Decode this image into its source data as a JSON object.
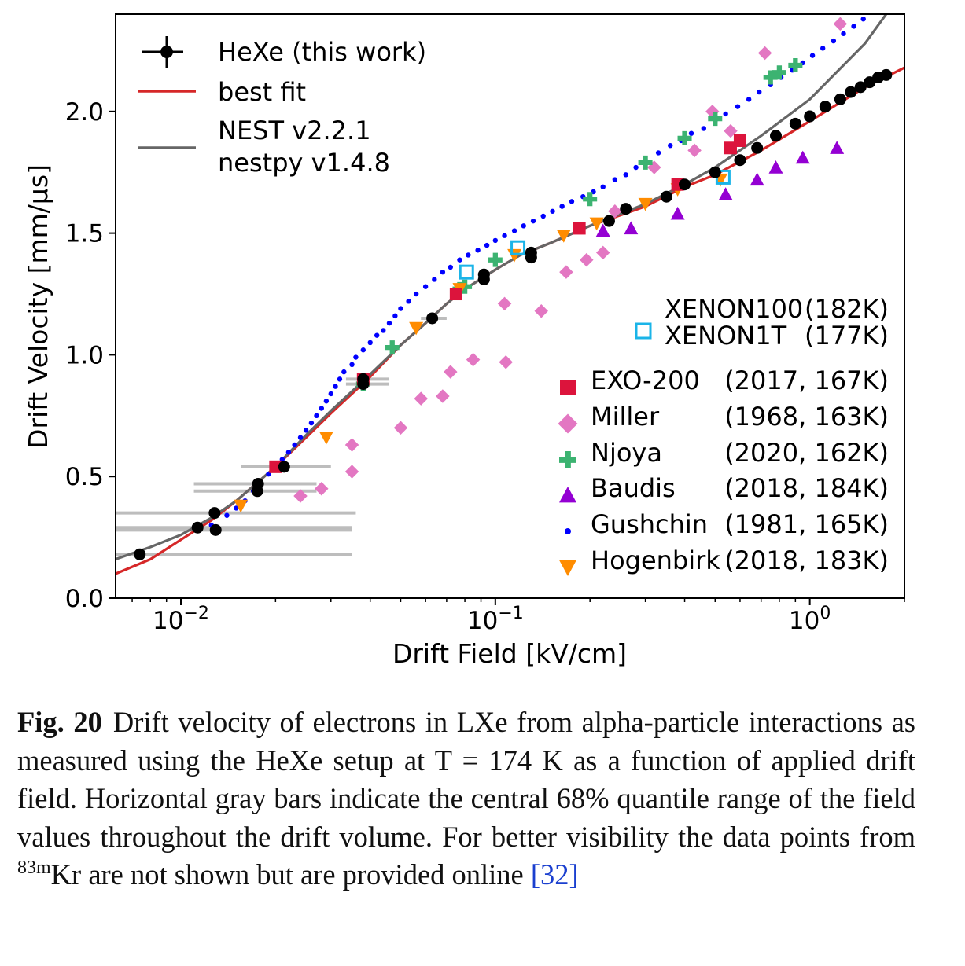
{
  "chart_data": {
    "type": "scatter",
    "xlabel": "Drift Field [kV/cm]",
    "ylabel": "Drift Velocity [mm/µs]",
    "xscale": "log",
    "xlim": [
      0.0062,
      2.0
    ],
    "ylim": [
      0.0,
      2.4
    ],
    "x_ticks": [
      0.01,
      0.1,
      1.0
    ],
    "x_tick_labels": [
      {
        "base": "10",
        "exp": "−2"
      },
      {
        "base": "10",
        "exp": "−1"
      },
      {
        "base": "10",
        "exp": "0"
      }
    ],
    "y_ticks": [
      0.0,
      0.5,
      1.0,
      1.5,
      2.0
    ],
    "y_tick_labels": [
      "0.0",
      "0.5",
      "1.0",
      "1.5",
      "2.0"
    ],
    "grid": false,
    "legend_top": {
      "placement": "top-left",
      "entries": [
        {
          "label": "HeXe (this work)",
          "marker": "errorbar-circle",
          "color": "#000000"
        },
        {
          "label": "best fit",
          "marker": "line",
          "color": "#d62728"
        },
        {
          "label": "NEST v2.2.1\nnestpy v1.4.8",
          "line1": "NEST v2.2.1",
          "line2": "nestpy v1.4.8",
          "marker": "line",
          "color": "#666666"
        }
      ]
    },
    "legend_bottom": {
      "placement": "right",
      "entries": [
        {
          "name": "XENON100",
          "info": "(182K)",
          "marker": "open-square",
          "color": "#1ab4e8"
        },
        {
          "name": "XENON1T",
          "info": "(177K)",
          "marker": "none",
          "color": "#1ab4e8"
        },
        {
          "name": "EXO-200",
          "info": "(2017, 167K)",
          "marker": "square",
          "color": "#dc143c"
        },
        {
          "name": "Miller",
          "info": "(1968, 163K)",
          "marker": "diamond",
          "color": "#e377c2"
        },
        {
          "name": "Njoya",
          "info": "(2020, 162K)",
          "marker": "plus",
          "color": "#3cb371"
        },
        {
          "name": "Baudis",
          "info": "(2018, 184K)",
          "marker": "triangle-up",
          "color": "#9400d3"
        },
        {
          "name": "Gushchin",
          "info": "(1981, 165K)",
          "marker": "dot",
          "color": "#0000ff"
        },
        {
          "name": "Hogenbirk",
          "info": "(2018, 183K)",
          "marker": "triangle-down",
          "color": "#ff8c00"
        }
      ]
    },
    "series": [
      {
        "name": "HeXe (this work)",
        "key": "hexe",
        "color": "#000000",
        "points": [
          [
            0.0074,
            0.18
          ],
          [
            0.0113,
            0.29
          ],
          [
            0.0128,
            0.35
          ],
          [
            0.0129,
            0.28
          ],
          [
            0.0175,
            0.44
          ],
          [
            0.0176,
            0.47
          ],
          [
            0.0213,
            0.54
          ],
          [
            0.038,
            0.88
          ],
          [
            0.038,
            0.9
          ],
          [
            0.063,
            1.15
          ],
          [
            0.092,
            1.31
          ],
          [
            0.092,
            1.33
          ],
          [
            0.13,
            1.4
          ],
          [
            0.13,
            1.42
          ],
          [
            0.23,
            1.55
          ],
          [
            0.26,
            1.6
          ],
          [
            0.35,
            1.65
          ],
          [
            0.4,
            1.7
          ],
          [
            0.5,
            1.75
          ],
          [
            0.6,
            1.8
          ],
          [
            0.68,
            1.85
          ],
          [
            0.78,
            1.9
          ],
          [
            0.9,
            1.95
          ],
          [
            1.0,
            1.98
          ],
          [
            1.12,
            2.02
          ],
          [
            1.25,
            2.05
          ],
          [
            1.35,
            2.08
          ],
          [
            1.45,
            2.1
          ],
          [
            1.55,
            2.12
          ],
          [
            1.65,
            2.14
          ],
          [
            1.75,
            2.15
          ]
        ],
        "xerr_range": [
          [
            0.0062,
            0.035
          ],
          [
            0.0062,
            0.035
          ],
          [
            0.0062,
            0.036
          ],
          [
            0.0062,
            0.035
          ],
          [
            0.011,
            0.027
          ],
          [
            0.011,
            0.027
          ],
          [
            0.0155,
            0.03
          ],
          [
            0.0335,
            0.046
          ],
          [
            0.0335,
            0.046
          ],
          [
            0.058,
            0.07
          ],
          [
            0.088,
            0.096
          ],
          [
            0.088,
            0.096
          ],
          [
            0.125,
            0.135
          ],
          [
            0.125,
            0.135
          ]
        ]
      },
      {
        "name": "best fit",
        "key": "fit",
        "color": "#d62728",
        "points": [
          [
            0.0062,
            0.1
          ],
          [
            0.008,
            0.16
          ],
          [
            0.01,
            0.24
          ],
          [
            0.0125,
            0.32
          ],
          [
            0.015,
            0.4
          ],
          [
            0.02,
            0.54
          ],
          [
            0.025,
            0.66
          ],
          [
            0.03,
            0.76
          ],
          [
            0.035,
            0.84
          ],
          [
            0.04,
            0.91
          ],
          [
            0.05,
            1.04
          ],
          [
            0.06,
            1.13
          ],
          [
            0.07,
            1.21
          ],
          [
            0.08,
            1.27
          ],
          [
            0.1,
            1.35
          ],
          [
            0.12,
            1.41
          ],
          [
            0.15,
            1.46
          ],
          [
            0.2,
            1.53
          ],
          [
            0.3,
            1.61
          ],
          [
            0.4,
            1.69
          ],
          [
            0.5,
            1.74
          ],
          [
            0.7,
            1.84
          ],
          [
            1.0,
            1.96
          ],
          [
            1.5,
            2.1
          ],
          [
            2.0,
            2.18
          ]
        ]
      },
      {
        "name": "NEST v2.2.1 nestpy v1.4.8",
        "key": "nest",
        "color": "#666666",
        "points": [
          [
            0.0062,
            0.16
          ],
          [
            0.008,
            0.21
          ],
          [
            0.01,
            0.26
          ],
          [
            0.0125,
            0.33
          ],
          [
            0.015,
            0.4
          ],
          [
            0.02,
            0.54
          ],
          [
            0.025,
            0.67
          ],
          [
            0.03,
            0.77
          ],
          [
            0.035,
            0.85
          ],
          [
            0.04,
            0.92
          ],
          [
            0.05,
            1.04
          ],
          [
            0.06,
            1.13
          ],
          [
            0.07,
            1.21
          ],
          [
            0.08,
            1.27
          ],
          [
            0.1,
            1.35
          ],
          [
            0.12,
            1.41
          ],
          [
            0.15,
            1.46
          ],
          [
            0.2,
            1.53
          ],
          [
            0.3,
            1.62
          ],
          [
            0.4,
            1.7
          ],
          [
            0.5,
            1.77
          ],
          [
            0.7,
            1.9
          ],
          [
            1.0,
            2.05
          ],
          [
            1.5,
            2.28
          ],
          [
            1.75,
            2.4
          ]
        ]
      },
      {
        "name": "XENON100 (182K)",
        "key": "xenon",
        "color": "#1ab4e8",
        "points": [
          [
            0.081,
            1.34
          ],
          [
            0.118,
            1.44
          ],
          [
            0.53,
            1.73
          ]
        ]
      },
      {
        "name": "EXO-200 (2017, 167K)",
        "key": "exo",
        "color": "#dc143c",
        "points": [
          [
            0.02,
            0.54
          ],
          [
            0.038,
            0.9
          ],
          [
            0.075,
            1.25
          ],
          [
            0.185,
            1.52
          ],
          [
            0.38,
            1.7
          ],
          [
            0.56,
            1.85
          ],
          [
            0.6,
            1.88
          ]
        ]
      },
      {
        "name": "Miller (1968, 163K)",
        "key": "miller",
        "color": "#e377c2",
        "points": [
          [
            0.024,
            0.42
          ],
          [
            0.028,
            0.45
          ],
          [
            0.035,
            0.52
          ],
          [
            0.035,
            0.63
          ],
          [
            0.05,
            0.7
          ],
          [
            0.058,
            0.82
          ],
          [
            0.068,
            0.83
          ],
          [
            0.072,
            0.93
          ],
          [
            0.085,
            0.98
          ],
          [
            0.108,
            0.97
          ],
          [
            0.107,
            1.21
          ],
          [
            0.14,
            1.18
          ],
          [
            0.168,
            1.34
          ],
          [
            0.195,
            1.39
          ],
          [
            0.22,
            1.42
          ],
          [
            0.24,
            1.59
          ],
          [
            0.32,
            1.77
          ],
          [
            0.43,
            1.84
          ],
          [
            0.49,
            2.0
          ],
          [
            0.56,
            1.92
          ],
          [
            0.72,
            2.24
          ],
          [
            1.25,
            2.36
          ]
        ]
      },
      {
        "name": "Njoya (2020, 162K)",
        "key": "njoya",
        "color": "#3cb371",
        "points": [
          [
            0.038,
            0.88
          ],
          [
            0.047,
            1.03
          ],
          [
            0.077,
            1.27
          ],
          [
            0.08,
            1.28
          ],
          [
            0.1,
            1.39
          ],
          [
            0.2,
            1.64
          ],
          [
            0.3,
            1.79
          ],
          [
            0.4,
            1.89
          ],
          [
            0.5,
            1.97
          ],
          [
            0.75,
            2.14
          ],
          [
            0.8,
            2.16
          ],
          [
            0.9,
            2.19
          ]
        ]
      },
      {
        "name": "Baudis (2018, 184K)",
        "key": "baudis",
        "color": "#9400d3",
        "points": [
          [
            0.22,
            1.51
          ],
          [
            0.27,
            1.52
          ],
          [
            0.38,
            1.58
          ],
          [
            0.54,
            1.66
          ],
          [
            0.68,
            1.72
          ],
          [
            0.78,
            1.77
          ],
          [
            0.95,
            1.81
          ],
          [
            1.22,
            1.85
          ]
        ]
      },
      {
        "name": "Gushchin (1981, 165K)",
        "key": "gushchin",
        "color": "#0000ff",
        "points": [
          [
            0.0125,
            0.3
          ],
          [
            0.014,
            0.34
          ],
          [
            0.015,
            0.37
          ],
          [
            0.016,
            0.4
          ],
          [
            0.017,
            0.44
          ],
          [
            0.018,
            0.47
          ],
          [
            0.019,
            0.51
          ],
          [
            0.02,
            0.54
          ],
          [
            0.021,
            0.57
          ],
          [
            0.022,
            0.6
          ],
          [
            0.023,
            0.63
          ],
          [
            0.024,
            0.66
          ],
          [
            0.025,
            0.69
          ],
          [
            0.026,
            0.72
          ],
          [
            0.027,
            0.75
          ],
          [
            0.028,
            0.78
          ],
          [
            0.029,
            0.81
          ],
          [
            0.03,
            0.84
          ],
          [
            0.031,
            0.87
          ],
          [
            0.032,
            0.9
          ],
          [
            0.033,
            0.93
          ],
          [
            0.035,
            0.96
          ],
          [
            0.036,
            0.99
          ],
          [
            0.038,
            1.02
          ],
          [
            0.04,
            1.05
          ],
          [
            0.042,
            1.08
          ],
          [
            0.044,
            1.1
          ],
          [
            0.046,
            1.13
          ],
          [
            0.048,
            1.16
          ],
          [
            0.05,
            1.19
          ],
          [
            0.053,
            1.22
          ],
          [
            0.056,
            1.25
          ],
          [
            0.06,
            1.28
          ],
          [
            0.064,
            1.31
          ],
          [
            0.068,
            1.34
          ],
          [
            0.072,
            1.36
          ],
          [
            0.077,
            1.39
          ],
          [
            0.082,
            1.41
          ],
          [
            0.088,
            1.43
          ],
          [
            0.094,
            1.45
          ],
          [
            0.1,
            1.47
          ],
          [
            0.107,
            1.49
          ],
          [
            0.115,
            1.51
          ],
          [
            0.123,
            1.53
          ],
          [
            0.132,
            1.55
          ],
          [
            0.142,
            1.57
          ],
          [
            0.152,
            1.59
          ],
          [
            0.163,
            1.61
          ],
          [
            0.175,
            1.63
          ],
          [
            0.19,
            1.65
          ],
          [
            0.205,
            1.67
          ],
          [
            0.22,
            1.69
          ],
          [
            0.24,
            1.72
          ],
          [
            0.26,
            1.74
          ],
          [
            0.28,
            1.77
          ],
          [
            0.3,
            1.8
          ],
          [
            0.33,
            1.83
          ],
          [
            0.36,
            1.86
          ],
          [
            0.39,
            1.88
          ],
          [
            0.42,
            1.91
          ],
          [
            0.46,
            1.93
          ],
          [
            0.5,
            1.96
          ],
          [
            0.54,
            1.99
          ],
          [
            0.59,
            2.02
          ],
          [
            0.64,
            2.05
          ],
          [
            0.69,
            2.08
          ],
          [
            0.75,
            2.11
          ],
          [
            0.81,
            2.14
          ],
          [
            0.88,
            2.17
          ],
          [
            0.95,
            2.2
          ],
          [
            1.02,
            2.23
          ],
          [
            1.1,
            2.26
          ],
          [
            1.19,
            2.29
          ],
          [
            1.28,
            2.32
          ],
          [
            1.38,
            2.35
          ],
          [
            1.48,
            2.38
          ]
        ]
      },
      {
        "name": "Hogenbirk (2018, 183K)",
        "key": "hogenbirk",
        "color": "#ff8c00",
        "points": [
          [
            0.0155,
            0.38
          ],
          [
            0.029,
            0.66
          ],
          [
            0.056,
            1.11
          ],
          [
            0.077,
            1.27
          ],
          [
            0.115,
            1.41
          ],
          [
            0.165,
            1.49
          ],
          [
            0.21,
            1.54
          ],
          [
            0.3,
            1.62
          ],
          [
            0.38,
            1.68
          ],
          [
            0.52,
            1.72
          ]
        ]
      }
    ]
  },
  "caption": {
    "label": "Fig. 20",
    "text_before": "Drift velocity of electrons in LXe from alpha-particle interactions as measured using the HeXe setup at T = 174 K as a function of applied drift field. Horizontal gray bars indicate the central 68% quantile range of the field values throughout the drift volume. For better visibility the data points from ",
    "isotope_mass": "83m",
    "isotope_symbol": "Kr",
    "text_after": " are not shown but are provided online ",
    "ref": "[32]"
  }
}
